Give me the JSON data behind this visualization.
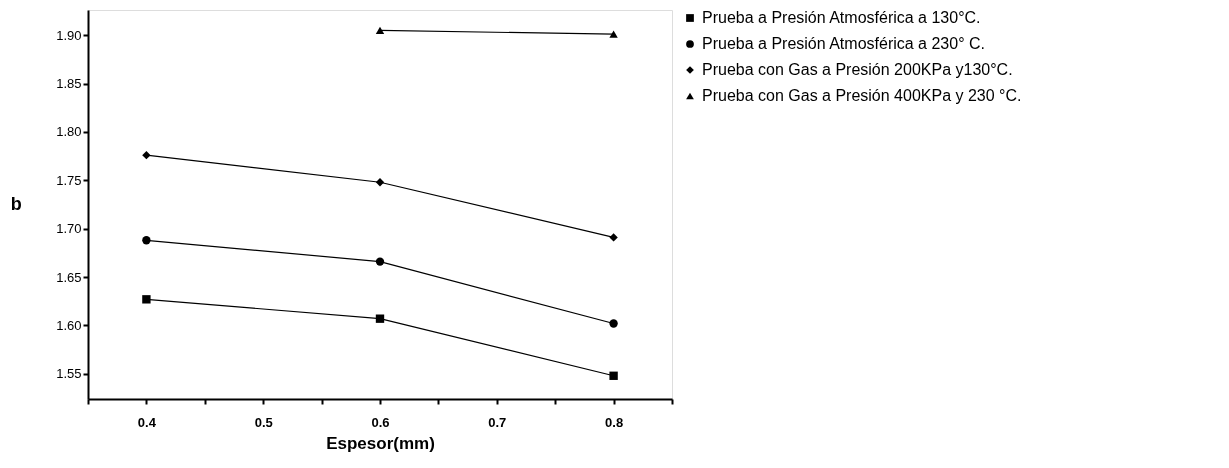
{
  "chart_data": {
    "type": "line",
    "xlabel": "Espesor(mm)",
    "ylabel": "b",
    "x": [
      0.4,
      0.6,
      0.8
    ],
    "series": [
      {
        "name": "Prueba a Presión Atmosférica a 130°C.",
        "color": "#000000",
        "marker": "square",
        "values": [
          1.627,
          1.607,
          1.548
        ]
      },
      {
        "name": "Prueba a Presión Atmosférica a 230° C.",
        "color": "#000000",
        "marker": "circle",
        "values": [
          1.688,
          1.666,
          1.602
        ]
      },
      {
        "name": "Prueba con Gas a Presión 200KPa y130°C.",
        "color": "#000000",
        "marker": "diamond",
        "values": [
          1.776,
          1.748,
          1.691
        ]
      },
      {
        "name": "Prueba con Gas a Presión 400KPa y 230 °C.",
        "color": "#000000",
        "marker": "triangle",
        "values": [
          null,
          1.905,
          1.901
        ]
      }
    ],
    "xlim": [
      0.35,
      0.85
    ],
    "xticks": [
      {
        "value": 0.35,
        "label": null
      },
      0.4,
      {
        "value": 0.45,
        "label": null
      },
      0.5,
      {
        "value": 0.55,
        "label": null
      },
      0.6,
      {
        "value": 0.65,
        "label": null
      },
      0.7,
      {
        "value": 0.75,
        "label": null
      },
      0.8,
      {
        "value": 0.85,
        "label": null
      }
    ],
    "ylim": [
      1.524,
      1.926
    ],
    "yticks": [
      {
        "value": 1.55,
        "label": "1.55"
      },
      {
        "value": 1.6,
        "label": "1.60"
      },
      {
        "value": 1.65,
        "label": "1.65"
      },
      {
        "value": 1.7,
        "label": "1.70"
      },
      {
        "value": 1.75,
        "label": "1.75"
      },
      {
        "value": 1.8,
        "label": "1.80"
      },
      {
        "value": 1.85,
        "label": "1.85"
      },
      {
        "value": 1.9,
        "label": "1.90"
      }
    ],
    "grid": false,
    "legend": "right",
    "line_style": "solid"
  }
}
